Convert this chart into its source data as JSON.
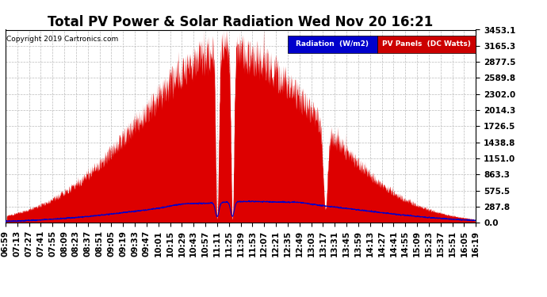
{
  "title": "Total PV Power & Solar Radiation Wed Nov 20 16:21",
  "copyright": "Copyright 2019 Cartronics.com",
  "legend_radiation": "Radiation  (W/m2)",
  "legend_pv": "PV Panels  (DC Watts)",
  "yticks": [
    0.0,
    287.8,
    575.5,
    863.3,
    1151.0,
    1438.8,
    1726.5,
    2014.3,
    2302.0,
    2589.8,
    2877.5,
    3165.3,
    3453.1
  ],
  "ymax": 3453.1,
  "background_color": "#ffffff",
  "plot_bg_color": "#ffffff",
  "grid_color": "#bbbbbb",
  "fill_pv_color": "#dd0000",
  "line_radiation_color": "#0000cc",
  "title_fontsize": 12,
  "tick_fontsize": 7.5,
  "time_labels": [
    "06:59",
    "07:13",
    "07:27",
    "07:41",
    "07:55",
    "08:09",
    "08:23",
    "08:37",
    "08:51",
    "09:05",
    "09:19",
    "09:33",
    "09:47",
    "10:01",
    "10:15",
    "10:29",
    "10:43",
    "10:57",
    "11:11",
    "11:25",
    "11:39",
    "11:53",
    "12:07",
    "12:21",
    "12:35",
    "12:49",
    "13:03",
    "13:17",
    "13:31",
    "13:45",
    "13:59",
    "14:13",
    "14:27",
    "14:41",
    "14:55",
    "15:09",
    "15:23",
    "15:37",
    "15:51",
    "16:05",
    "16:19"
  ]
}
